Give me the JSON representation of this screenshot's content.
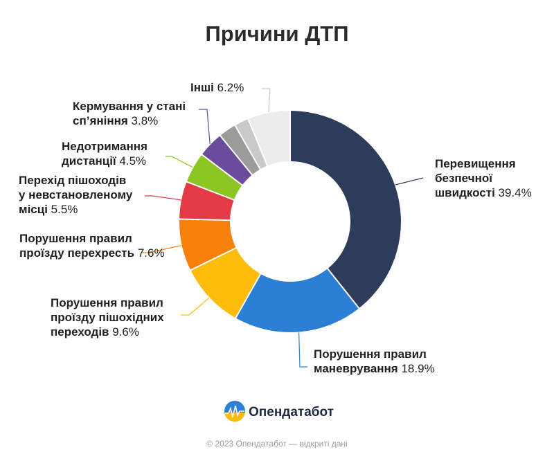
{
  "chart_data": {
    "type": "pie",
    "title": "Причини ДТП",
    "slices": [
      {
        "label_lines": [
          "Перевищення",
          "безпечної",
          "швидкості"
        ],
        "value": 39.4,
        "color": "#2e3c5c"
      },
      {
        "label_lines": [
          "Порушення правил",
          "маневрування"
        ],
        "value": 18.9,
        "color": "#2b7fd4"
      },
      {
        "label_lines": [
          "Порушення правил",
          "проїзду пішохідних",
          "переходів"
        ],
        "value": 9.6,
        "color": "#fbbd0a"
      },
      {
        "label_lines": [
          "Порушення правил",
          "проїзду перехресть"
        ],
        "value": 7.6,
        "color": "#f77f0c"
      },
      {
        "label_lines": [
          "Перехід пішоходів",
          "у невстановленому",
          "місці"
        ],
        "value": 5.5,
        "color": "#e43a45"
      },
      {
        "label_lines": [
          "Недотримання",
          "дистанції"
        ],
        "value": 4.5,
        "color": "#8cc622"
      },
      {
        "label_lines": [
          "Кермування у стані",
          "сп’яніння"
        ],
        "value": 3.8,
        "color": "#6a4c9a"
      },
      {
        "label_lines": [],
        "value": 2.6,
        "color": "#9b9b9b"
      },
      {
        "label_lines": [],
        "value": 2.1,
        "color": "#c9c9c9"
      },
      {
        "label_lines": [
          "Інші"
        ],
        "value": 6.2,
        "color": "#ececec"
      }
    ],
    "value_suffix": "%"
  },
  "brand": {
    "name": "Опендатабот",
    "color": "#1d2a44",
    "logo_colors": [
      "#2b7fd4",
      "#fbbd0a"
    ]
  },
  "footer": "© 2023 Опендатабот — відкриті дані"
}
